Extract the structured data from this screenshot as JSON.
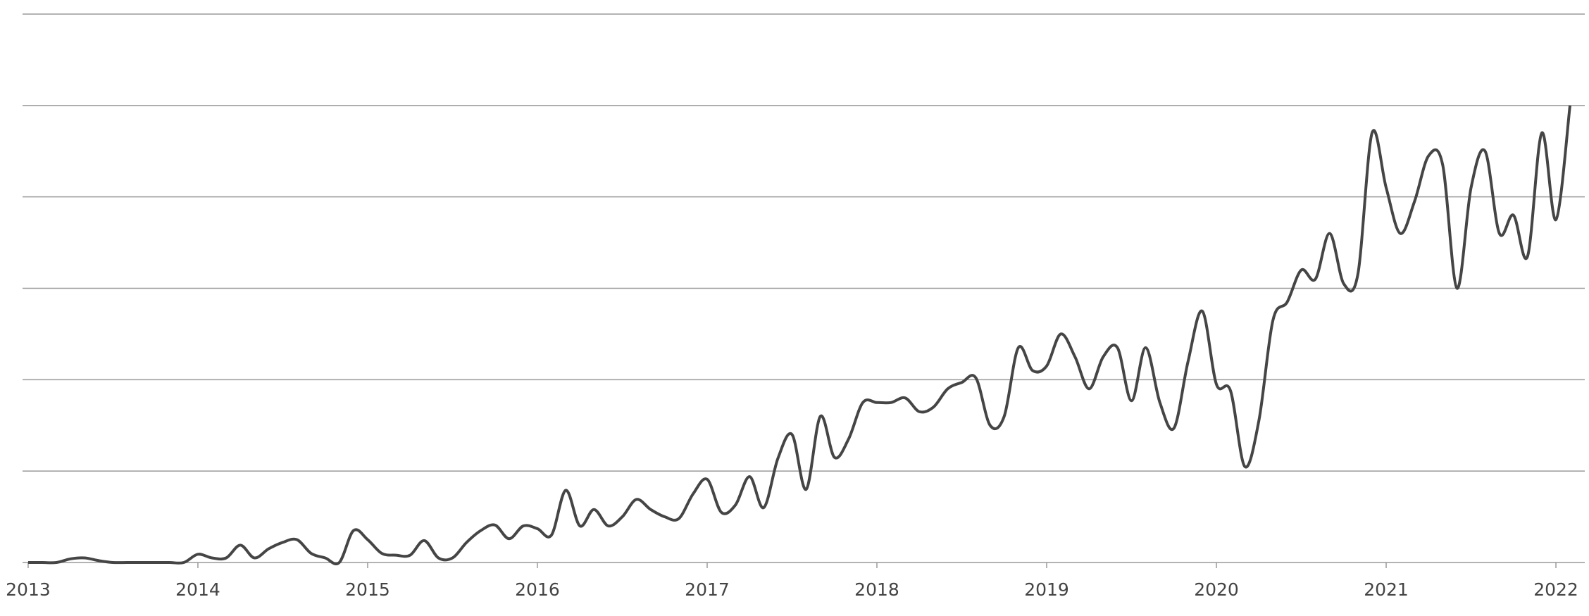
{
  "chart_data": {
    "type": "line",
    "x": [
      2013.0,
      2013.083,
      2013.167,
      2013.25,
      2013.333,
      2013.417,
      2013.5,
      2013.583,
      2013.667,
      2013.75,
      2013.833,
      2013.917,
      2014.0,
      2014.083,
      2014.167,
      2014.25,
      2014.333,
      2014.417,
      2014.5,
      2014.583,
      2014.667,
      2014.75,
      2014.833,
      2014.917,
      2015.0,
      2015.083,
      2015.167,
      2015.25,
      2015.333,
      2015.417,
      2015.5,
      2015.583,
      2015.667,
      2015.75,
      2015.833,
      2015.917,
      2016.0,
      2016.083,
      2016.167,
      2016.25,
      2016.333,
      2016.417,
      2016.5,
      2016.583,
      2016.667,
      2016.75,
      2016.833,
      2016.917,
      2017.0,
      2017.083,
      2017.167,
      2017.25,
      2017.333,
      2017.417,
      2017.5,
      2017.583,
      2017.667,
      2017.75,
      2017.833,
      2017.917,
      2018.0,
      2018.083,
      2018.167,
      2018.25,
      2018.333,
      2018.417,
      2018.5,
      2018.583,
      2018.667,
      2018.75,
      2018.833,
      2018.917,
      2019.0,
      2019.083,
      2019.167,
      2019.25,
      2019.333,
      2019.417,
      2019.5,
      2019.583,
      2019.667,
      2019.75,
      2019.833,
      2019.917,
      2020.0,
      2020.083,
      2020.167,
      2020.25,
      2020.333,
      2020.417,
      2020.5,
      2020.583,
      2020.667,
      2020.75,
      2020.833,
      2020.917,
      2021.0,
      2021.083,
      2021.167,
      2021.25,
      2021.333,
      2021.417,
      2021.5,
      2021.583,
      2021.667,
      2021.75,
      2021.833,
      2021.917,
      2022.0,
      2022.083
    ],
    "values": [
      0,
      0,
      0,
      0.04,
      0.05,
      0.02,
      0,
      0,
      0,
      0,
      0,
      0,
      0.09,
      0.05,
      0.05,
      0.19,
      0.05,
      0.15,
      0.22,
      0.25,
      0.1,
      0.05,
      0,
      0.35,
      0.25,
      0.1,
      0.08,
      0.08,
      0.24,
      0.05,
      0.05,
      0.22,
      0.35,
      0.41,
      0.26,
      0.4,
      0.37,
      0.3,
      0.79,
      0.4,
      0.58,
      0.4,
      0.5,
      0.69,
      0.58,
      0.5,
      0.48,
      0.75,
      0.91,
      0.55,
      0.63,
      0.94,
      0.6,
      1.14,
      1.4,
      0.8,
      1.6,
      1.15,
      1.35,
      1.75,
      1.75,
      1.75,
      1.8,
      1.65,
      1.7,
      1.9,
      1.97,
      2.02,
      1.5,
      1.6,
      2.35,
      2.1,
      2.15,
      2.5,
      2.25,
      1.9,
      2.25,
      2.35,
      1.77,
      2.35,
      1.75,
      1.47,
      2.2,
      2.75,
      1.95,
      1.88,
      1.05,
      1.55,
      2.65,
      2.85,
      3.2,
      3.1,
      3.6,
      3.05,
      3.15,
      4.7,
      4.1,
      3.6,
      3.95,
      4.45,
      4.35,
      3.0,
      4.1,
      4.5,
      3.6,
      3.8,
      3.35,
      4.7,
      3.75,
      5.0
    ],
    "color": "#454545",
    "xlim": [
      2012.967,
      2022.17
    ],
    "xticks": [
      2013,
      2014,
      2015,
      2016,
      2017,
      2018,
      2019,
      2020,
      2021,
      2022
    ],
    "ylim": [
      0,
      6
    ],
    "yticks": [
      0,
      1,
      2,
      3,
      4,
      5,
      6
    ],
    "ytick_labels": false,
    "grid": true
  }
}
